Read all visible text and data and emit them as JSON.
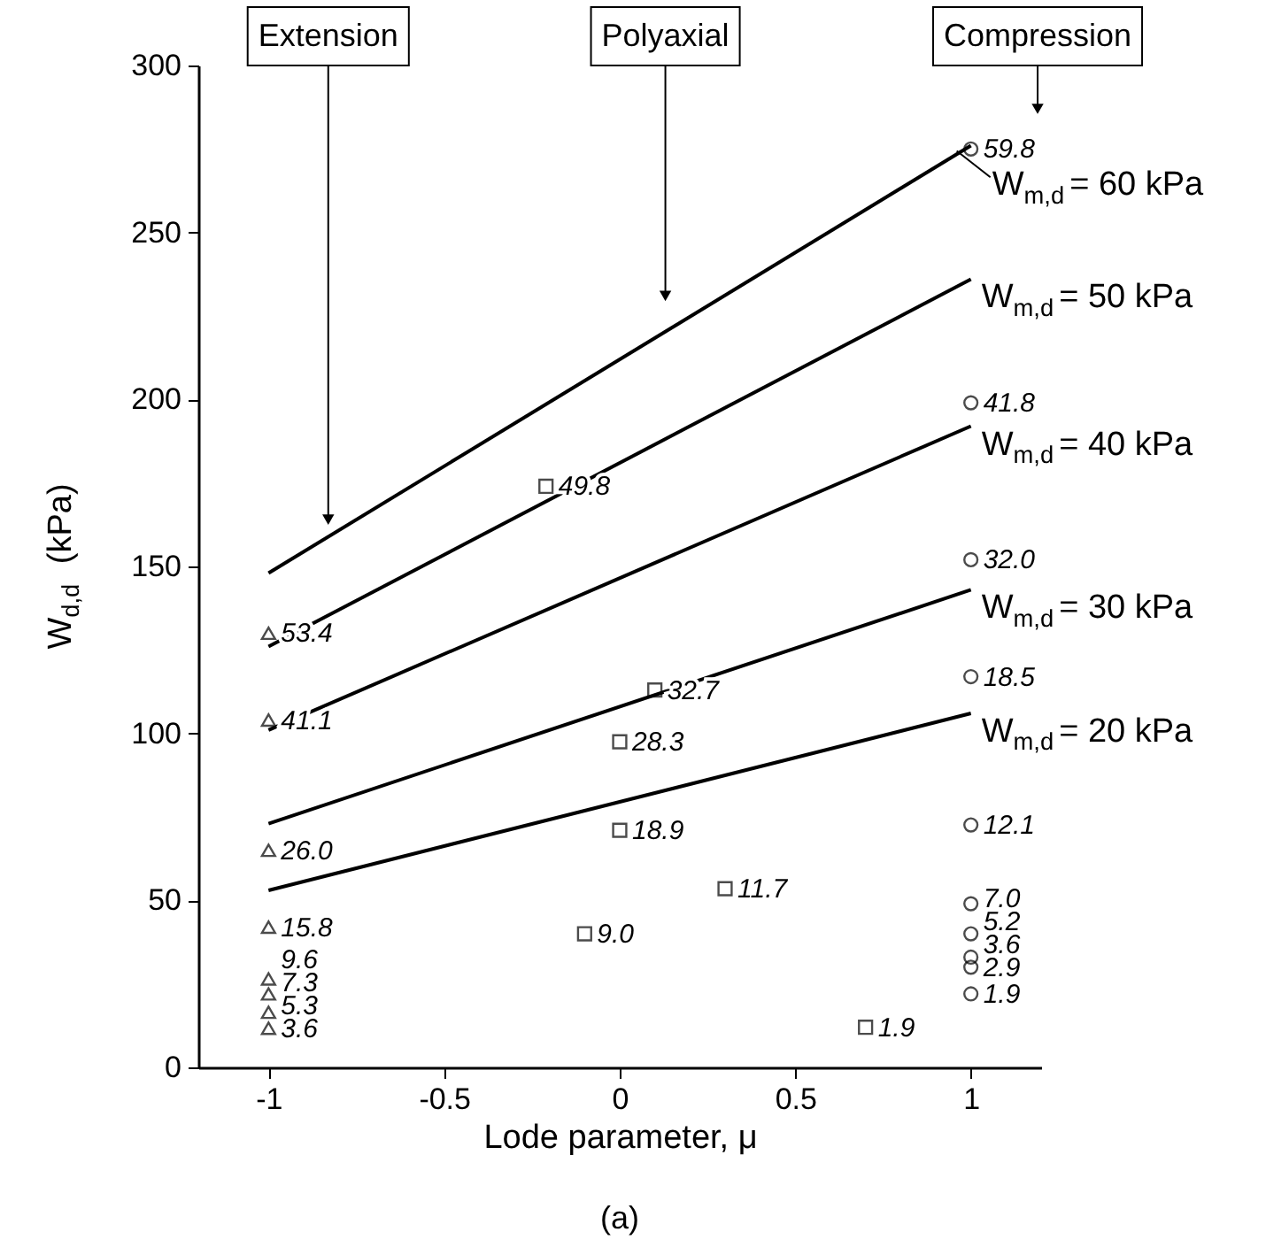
{
  "chart_data": {
    "type": "scatter",
    "xlabel": "Lode parameter, μ",
    "ylabel": "W$_{d,d}$ (kPa)",
    "xlim": [
      -1.2,
      1.2
    ],
    "ylim": [
      0,
      300
    ],
    "xticks": [
      -1,
      -0.5,
      0,
      0.5,
      1
    ],
    "yticks": [
      0,
      50,
      100,
      150,
      200,
      250,
      300
    ],
    "series": [
      {
        "name": "W$_{m,d}$= 60 kPa",
        "type": "line",
        "x": [
          -1,
          1
        ],
        "values": [
          148,
          276
        ],
        "color": "#000000"
      },
      {
        "name": "W$_{m,d}$= 50 kPa",
        "type": "line",
        "x": [
          -1,
          1
        ],
        "values": [
          126,
          236
        ],
        "color": "#000000"
      },
      {
        "name": "W$_{m,d}$= 40 kPa",
        "type": "line",
        "x": [
          -1,
          1
        ],
        "values": [
          101,
          192
        ],
        "color": "#000000"
      },
      {
        "name": "W$_{m,d}$= 30 kPa",
        "type": "line",
        "x": [
          -1,
          1
        ],
        "values": [
          73,
          143
        ],
        "color": "#000000"
      },
      {
        "name": "W$_{m,d}$= 20 kPa",
        "type": "line",
        "x": [
          -1,
          1
        ],
        "values": [
          53,
          106
        ],
        "color": "#000000"
      },
      {
        "marker": "triangle",
        "color": "#000000",
        "x": [
          -1,
          -1,
          -1,
          -1,
          -1,
          -1,
          -1,
          -1
        ],
        "values": [
          130,
          104,
          65,
          42,
          26.5,
          22,
          16.5,
          11.7
        ]
      },
      {
        "marker": "square",
        "color": "#000000",
        "x": [
          -0.21,
          0.1,
          0,
          0,
          0.3,
          -0.1,
          0.7
        ],
        "values": [
          174,
          113,
          97.5,
          71,
          53.5,
          40,
          12
        ]
      },
      {
        "marker": "circle",
        "color": "#000000",
        "x": [
          1,
          1,
          1,
          1,
          1,
          1,
          1,
          1,
          1,
          1
        ],
        "values": [
          275,
          199,
          152,
          117,
          72.6,
          49,
          40,
          33,
          30,
          22
        ]
      }
    ],
    "annotations": [
      {
        "text": "Extension",
        "x": -0.83,
        "y": 164
      },
      {
        "text": "Polyaxial",
        "x": 0.13,
        "y": 231
      },
      {
        "text": "Compression",
        "x": 1.19,
        "y": 287
      },
      {
        "text": "53.4",
        "x": -1,
        "y": 130
      },
      {
        "text": "41.1",
        "x": -1,
        "y": 104
      },
      {
        "text": "26.0",
        "x": -1,
        "y": 65
      },
      {
        "text": "15.8",
        "x": -1,
        "y": 42
      },
      {
        "text": "9.6",
        "x": -1,
        "y": 26.5
      },
      {
        "text": "7.3",
        "x": -1,
        "y": 22
      },
      {
        "text": "5.3",
        "x": -1,
        "y": 16.5
      },
      {
        "text": "3.6",
        "x": -1,
        "y": 11.7
      },
      {
        "text": "49.8",
        "x": -0.21,
        "y": 174
      },
      {
        "text": "32.7",
        "x": 0.1,
        "y": 113
      },
      {
        "text": "28.3",
        "x": 0,
        "y": 97.5
      },
      {
        "text": "18.9",
        "x": 0,
        "y": 71
      },
      {
        "text": "11.7",
        "x": 0.3,
        "y": 53.5
      },
      {
        "text": "9.0",
        "x": -0.1,
        "y": 40
      },
      {
        "text": "1.9",
        "x": 0.7,
        "y": 12
      },
      {
        "text": "59.8",
        "x": 1,
        "y": 275
      },
      {
        "text": "41.8",
        "x": 1,
        "y": 199
      },
      {
        "text": "32.0",
        "x": 1,
        "y": 152
      },
      {
        "text": "18.5",
        "x": 1,
        "y": 117
      },
      {
        "text": "12.1",
        "x": 1,
        "y": 72.6
      },
      {
        "text": "7.0",
        "x": 1,
        "y": 49
      },
      {
        "text": "5.2",
        "x": 1,
        "y": 40
      },
      {
        "text": "3.6",
        "x": 1,
        "y": 33
      },
      {
        "text": "2.9",
        "x": 1,
        "y": 30
      },
      {
        "text": "1.9",
        "x": 1,
        "y": 22
      },
      "(a)"
    ]
  }
}
